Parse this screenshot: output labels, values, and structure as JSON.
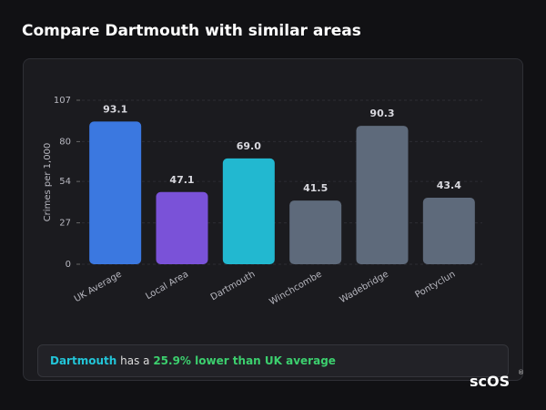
{
  "header": {
    "title": "Compare Dartmouth with similar areas"
  },
  "chart_data": {
    "type": "bar",
    "y_label": "Crimes per 1,000",
    "categories": [
      "UK Average",
      "Local Area",
      "Dartmouth",
      "Winchcombe",
      "Wadebridge",
      "Pontyclun"
    ],
    "values": [
      93.1,
      47.1,
      69.0,
      41.5,
      90.3,
      43.4
    ],
    "value_labels": [
      "93.1",
      "47.1",
      "69.0",
      "41.5",
      "90.3",
      "43.4"
    ],
    "colors": [
      "#3b78e0",
      "#7a52d8",
      "#22b8d0",
      "#5e6a7b",
      "#5e6a7b",
      "#5e6a7b"
    ],
    "ylim": [
      0,
      107
    ],
    "yticks": [
      0,
      27,
      54,
      80,
      107
    ],
    "grid": true
  },
  "summary": {
    "area": "Dartmouth",
    "middle": " has a ",
    "comparison": "25.9% lower than UK average"
  },
  "logo": {
    "text": "scOS",
    "mark": "®"
  }
}
